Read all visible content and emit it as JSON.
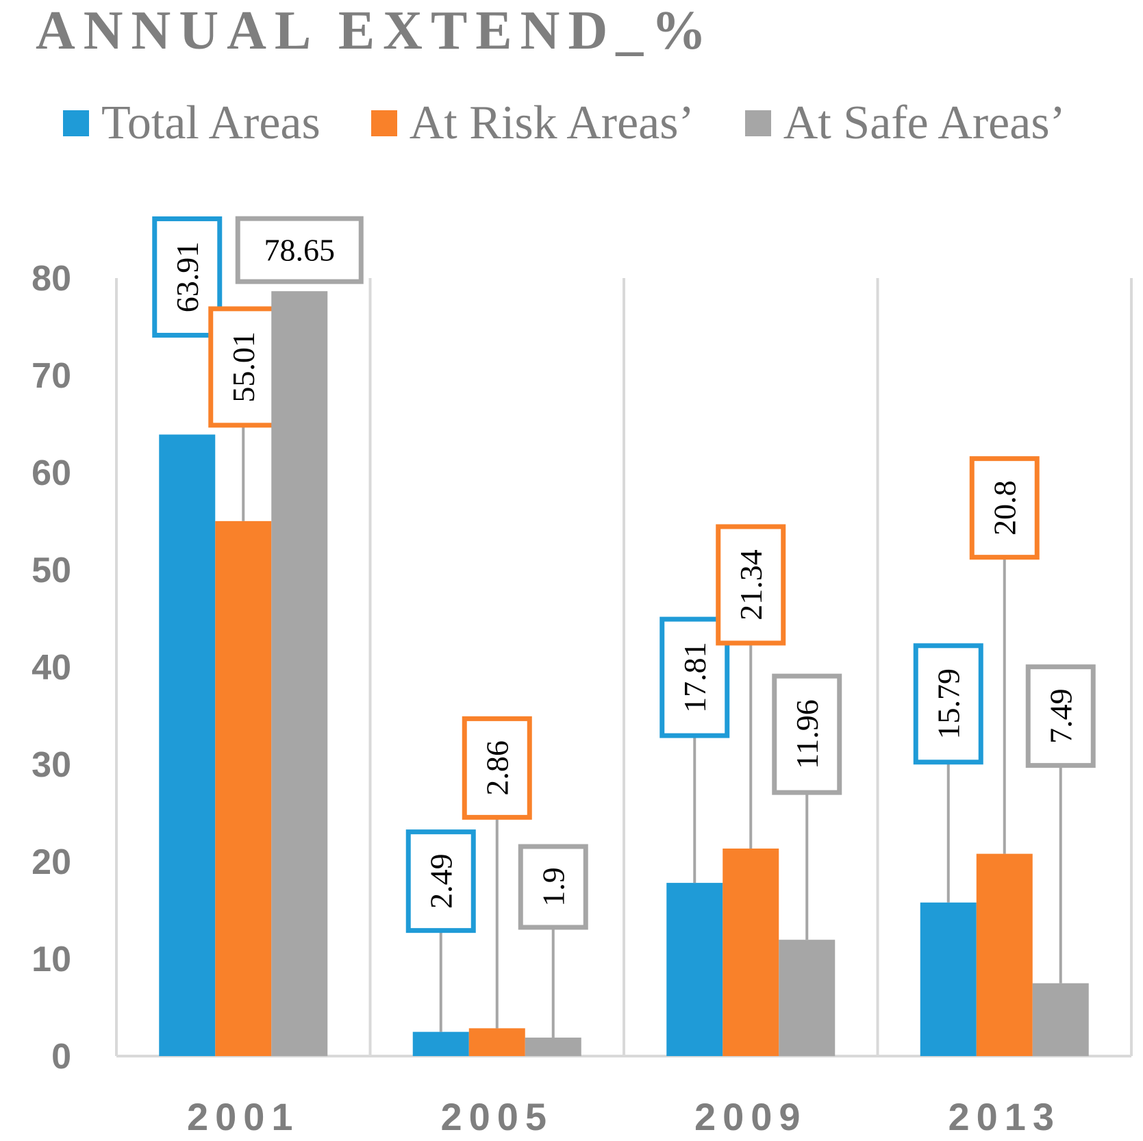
{
  "chart_data": {
    "type": "bar",
    "title": "ANNUAL EXTEND_%",
    "categories": [
      "2001",
      "2005",
      "2009",
      "2013"
    ],
    "series": [
      {
        "name": "Total Areas",
        "color": "#1f9bd7",
        "values": [
          63.91,
          2.49,
          17.81,
          15.79
        ],
        "labels": [
          "63.91",
          "2.49",
          "17.81",
          "15.79"
        ]
      },
      {
        "name": "At Risk Areas’",
        "color": "#f9812a",
        "values": [
          55.01,
          2.86,
          21.34,
          20.8
        ],
        "labels": [
          "55.01",
          "2.86",
          "21.34",
          "20.8"
        ]
      },
      {
        "name": "At Safe Areas’",
        "color": "#a6a6a6",
        "values": [
          78.65,
          1.9,
          11.96,
          7.49
        ],
        "labels": [
          "78.65",
          "1.9",
          "11.96",
          "7.49"
        ]
      }
    ],
    "yticks": [
      "0",
      "10",
      "20",
      "30",
      "40",
      "50",
      "60",
      "70",
      "80"
    ],
    "ylim": [
      0,
      80
    ],
    "xlabel": "",
    "ylabel": "",
    "legend_position": "top",
    "grid": "vertical separators between categories"
  }
}
